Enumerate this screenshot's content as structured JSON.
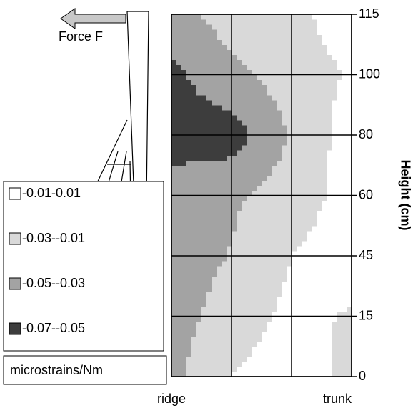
{
  "chart_data": {
    "type": "contour",
    "annotations": [
      "Force F"
    ],
    "y_label": "Height (cm)",
    "legend_title": "microstrains/Nm",
    "x": [
      "ridge",
      null,
      null,
      "trunk"
    ],
    "y": [
      0,
      15,
      45,
      60,
      80,
      100,
      115
    ],
    "values": [
      [
        -0.035,
        -0.01,
        0.0,
        -0.015
      ],
      [
        -0.04,
        -0.02,
        -0.005,
        -0.012
      ],
      [
        -0.04,
        -0.029,
        -0.01,
        0.0
      ],
      [
        -0.04,
        -0.033,
        -0.02,
        -0.002
      ],
      [
        -0.06,
        -0.06,
        -0.028,
        0.0
      ],
      [
        -0.055,
        -0.035,
        -0.02,
        -0.008
      ],
      [
        -0.04,
        -0.02,
        -0.015,
        0.0
      ]
    ],
    "levels": [
      {
        "name": "-0.01-0.01",
        "color": "#ffffff"
      },
      {
        "name": "-0.03--0.01",
        "color": "#d9d9d9"
      },
      {
        "name": "-0.05--0.03",
        "color": "#a3a3a3"
      },
      {
        "name": "-0.07--0.05",
        "color": "#3d3d3d"
      }
    ]
  }
}
